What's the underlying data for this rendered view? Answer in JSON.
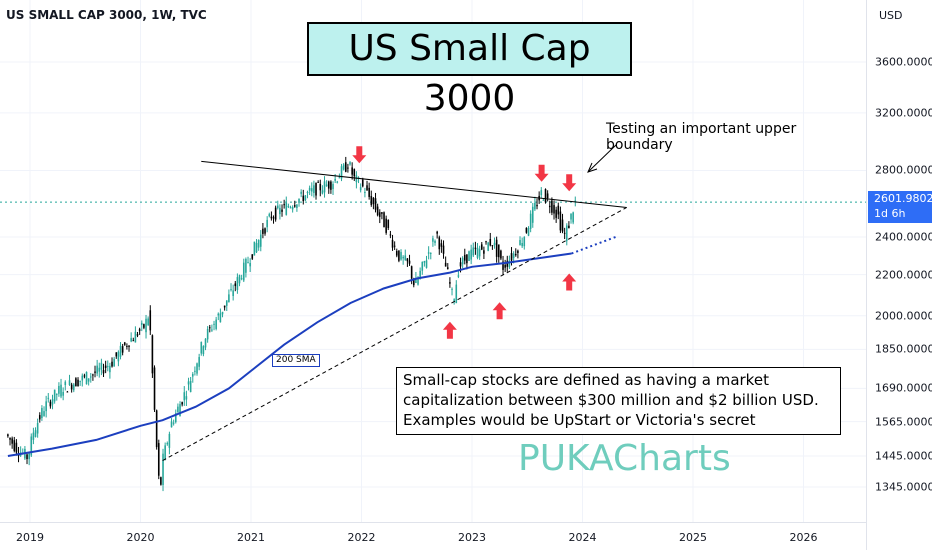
{
  "symbol": "US SMALL CAP 3000, 1W, TVC",
  "title": "US Small Cap 3000",
  "annotation": "Testing an important upper boundary",
  "sma_label": "200 SMA",
  "description": "Small-cap stocks are defined as having a market capitalization between $300 million and $2 billion USD. Examples would be UpStart or Victoria's secret",
  "watermark": "PUKACharts",
  "currency": "USD",
  "last_price": "2601.9802",
  "countdown": "1d 6h",
  "colors": {
    "candle_up": "#26a69a",
    "candle_down": "#000000",
    "sma": "#1c3fbf",
    "arrows": "#f23645",
    "price_tag": "#2e6df6",
    "title_bg": "#bdf1ee",
    "watermark": "#6fcdbd"
  },
  "chart_data": {
    "type": "line",
    "title": "US SMALL CAP 3000, 1W, TVC",
    "y_scale": "log",
    "ylim": [
      1320,
      4000
    ],
    "xlim": [
      2018.8,
      2026.9
    ],
    "y_ticks": [
      "3600.0000",
      "3200.0000",
      "2800.0000",
      "2400.0000",
      "2200.0000",
      "2000.0000",
      "1850.0000",
      "1690.0000",
      "1565.0000",
      "1445.0000",
      "1345.0000"
    ],
    "x_ticks": [
      "2019",
      "2020",
      "2021",
      "2022",
      "2023",
      "2024",
      "2025",
      "2026"
    ],
    "series": [
      {
        "name": "US SMALL CAP 3000",
        "x": [
          2018.8,
          2018.9,
          2019.0,
          2019.05,
          2019.15,
          2019.3,
          2019.45,
          2019.6,
          2019.75,
          2019.9,
          2020.05,
          2020.1,
          2020.12,
          2020.18,
          2020.2,
          2020.22,
          2020.3,
          2020.45,
          2020.6,
          2020.75,
          2020.85,
          2021.0,
          2021.1,
          2021.2,
          2021.4,
          2021.6,
          2021.75,
          2021.85,
          2021.9,
          2021.95,
          2022.05,
          2022.15,
          2022.25,
          2022.35,
          2022.45,
          2022.5,
          2022.6,
          2022.7,
          2022.8,
          2022.85,
          2022.9,
          2023.0,
          2023.1,
          2023.2,
          2023.3,
          2023.4,
          2023.5,
          2023.58,
          2023.65,
          2023.72,
          2023.8,
          2023.85,
          2023.9,
          2023.95
        ],
        "values": [
          1520,
          1470,
          1440,
          1530,
          1620,
          1690,
          1720,
          1750,
          1790,
          1880,
          1950,
          2010,
          1800,
          1380,
          1340,
          1430,
          1560,
          1700,
          1900,
          2020,
          2120,
          2280,
          2400,
          2520,
          2600,
          2680,
          2720,
          2800,
          2850,
          2750,
          2680,
          2560,
          2450,
          2300,
          2250,
          2140,
          2280,
          2420,
          2200,
          2070,
          2240,
          2310,
          2330,
          2380,
          2240,
          2310,
          2420,
          2560,
          2660,
          2600,
          2520,
          2400,
          2480,
          2600
        ]
      },
      {
        "name": "200 SMA",
        "x": [
          2018.8,
          2019.2,
          2019.6,
          2020.0,
          2020.2,
          2020.5,
          2020.8,
          2021.0,
          2021.3,
          2021.6,
          2021.9,
          2022.2,
          2022.5,
          2022.8,
          2023.0,
          2023.3,
          2023.6,
          2023.9,
          2024.3
        ],
        "values": [
          1445,
          1470,
          1500,
          1550,
          1570,
          1620,
          1690,
          1760,
          1870,
          1970,
          2060,
          2130,
          2180,
          2210,
          2240,
          2260,
          2285,
          2310,
          2400
        ]
      }
    ],
    "trendlines": [
      {
        "type": "resistance",
        "x": [
          2020.55,
          2024.4
        ],
        "values": [
          2860,
          2570
        ]
      },
      {
        "type": "support",
        "x": [
          2020.2,
          2024.4
        ],
        "values": [
          1430,
          2570
        ]
      }
    ],
    "markers": [
      {
        "direction": "down",
        "x": 2021.98,
        "value": 2880
      },
      {
        "direction": "down",
        "x": 2023.63,
        "value": 2760
      },
      {
        "direction": "down",
        "x": 2023.88,
        "value": 2700
      },
      {
        "direction": "up",
        "x": 2022.8,
        "value": 1950
      },
      {
        "direction": "up",
        "x": 2023.25,
        "value": 2040
      },
      {
        "direction": "up",
        "x": 2023.88,
        "value": 2180
      }
    ]
  }
}
